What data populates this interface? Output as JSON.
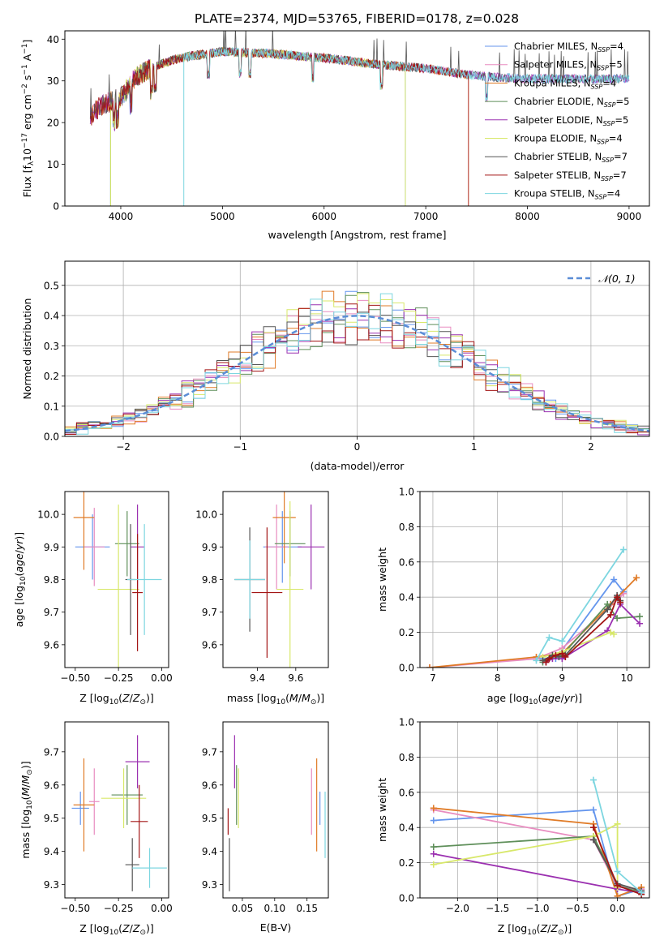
{
  "title": "PLATE=2374, MJD=53765, FIBERID=0178, z=0.028",
  "colors": [
    "#6495ED",
    "#E88CC0",
    "#E07B27",
    "#5F8F5A",
    "#9B30B0",
    "#D8E86A",
    "#555555",
    "#A31515",
    "#7DD6E0"
  ],
  "chart_data": [
    {
      "id": "spectrum",
      "type": "line",
      "xlabel": "wavelength [Angstrom, rest frame]",
      "ylabel": "Flux [fλ10⁻¹⁷ erg cm⁻² s⁻¹ A⁻¹]",
      "xlim": [
        3450,
        9200
      ],
      "ylim": [
        0,
        42
      ],
      "xticks": [
        4000,
        5000,
        6000,
        7000,
        8000,
        9000
      ],
      "yticks": [
        0,
        10,
        20,
        30,
        40
      ],
      "legend_position": "top-right",
      "series": [
        {
          "name": "Chabrier MILES, N_SSP=4",
          "base": "Chabrier MILES, N",
          "sub": "SSP",
          "n": "=4"
        },
        {
          "name": "Salpeter MILES, N_SSP=5",
          "base": "Salpeter MILES, N",
          "sub": "SSP",
          "n": "=5"
        },
        {
          "name": "Kroupa MILES, N_SSP=4",
          "base": "Kroupa MILES, N",
          "sub": "SSP",
          "n": "=4"
        },
        {
          "name": "Chabrier ELODIE, N_SSP=5",
          "base": "Chabrier ELODIE, N",
          "sub": "SSP",
          "n": "=5"
        },
        {
          "name": "Salpeter ELODIE, N_SSP=5",
          "base": "Salpeter ELODIE, N",
          "sub": "SSP",
          "n": "=5"
        },
        {
          "name": "Kroupa ELODIE, N_SSP=4",
          "base": "Kroupa ELODIE, N",
          "sub": "SSP",
          "n": "=4"
        },
        {
          "name": "Chabrier STELIB, N_SSP=7",
          "base": "Chabrier STELIB, N",
          "sub": "SSP",
          "n": "=7"
        },
        {
          "name": "Salpeter STELIB, N_SSP=7",
          "base": "Salpeter STELIB, N",
          "sub": "SSP",
          "n": "=7"
        },
        {
          "name": "Kroupa STELIB, N_SSP=4",
          "base": "Kroupa STELIB, N",
          "sub": "SSP",
          "n": "=4"
        }
      ],
      "continuum": [
        [
          3680,
          21
        ],
        [
          3800,
          24
        ],
        [
          3900,
          25
        ],
        [
          4000,
          26
        ],
        [
          4150,
          31
        ],
        [
          4300,
          33
        ],
        [
          4500,
          35
        ],
        [
          4700,
          36
        ],
        [
          5000,
          37
        ],
        [
          5500,
          36.5
        ],
        [
          6000,
          35.5
        ],
        [
          6500,
          34
        ],
        [
          7000,
          33
        ],
        [
          7400,
          31.5
        ],
        [
          7600,
          31
        ],
        [
          8000,
          30.5
        ],
        [
          8500,
          30.5
        ],
        [
          8950,
          30.5
        ]
      ],
      "model_ranges": [
        [
          3900,
          9200
        ],
        [
          3700,
          9200
        ],
        [
          3700,
          7420
        ],
        [
          3900,
          6800
        ],
        [
          3700,
          9200
        ],
        [
          3900,
          6800
        ],
        [
          3700,
          9200
        ],
        [
          3700,
          7420
        ],
        [
          4620,
          9200
        ]
      ]
    },
    {
      "id": "residuals",
      "type": "histogram",
      "xlabel": "(data-model)/error",
      "ylabel": "Normed distribution",
      "xlim": [
        -2.5,
        2.5
      ],
      "ylim": [
        0,
        0.58
      ],
      "xticks": [
        -2,
        -1,
        0,
        1,
        2
      ],
      "yticks": [
        0.0,
        0.1,
        0.2,
        0.3,
        0.4,
        0.5
      ],
      "grid": true,
      "bin_width": 0.1,
      "reference_curve": {
        "name": "N(0,1)",
        "label": "𝒩(0, 1)",
        "mean": 0,
        "sigma": 1,
        "color": "#5B8DD6"
      }
    },
    {
      "id": "age_vs_Z",
      "type": "scatter",
      "xlabel": "Z [log10(Z/Z☉)]",
      "ylabel": "age [log10(age/yr)]",
      "xlim": [
        -0.56,
        0.04
      ],
      "ylim": [
        9.53,
        10.07
      ],
      "xticks": [
        -0.5,
        -0.25,
        0.0
      ],
      "yticks": [
        9.6,
        9.7,
        9.8,
        9.9,
        10.0
      ],
      "points": [
        {
          "x": -0.4,
          "y": 9.9,
          "xerr": 0.1,
          "yerr": 0.1
        },
        {
          "x": -0.39,
          "y": 9.9,
          "xerr": 0.06,
          "yerr": 0.12
        },
        {
          "x": -0.45,
          "y": 9.99,
          "xerr": 0.06,
          "yerr": 0.16
        },
        {
          "x": -0.2,
          "y": 9.91,
          "xerr": 0.07,
          "yerr": 0.1
        },
        {
          "x": -0.14,
          "y": 9.9,
          "xerr": 0.04,
          "yerr": 0.13
        },
        {
          "x": -0.25,
          "y": 9.77,
          "xerr": 0.12,
          "yerr": 0.26
        },
        {
          "x": -0.18,
          "y": 9.8,
          "xerr": 0.03,
          "yerr": 0.17
        },
        {
          "x": -0.14,
          "y": 9.76,
          "xerr": 0.03,
          "yerr": 0.18
        },
        {
          "x": -0.1,
          "y": 9.8,
          "xerr": 0.1,
          "yerr": 0.17
        }
      ]
    },
    {
      "id": "age_vs_mass",
      "type": "scatter",
      "xlabel": "mass [log10(M/M☉)]",
      "ylabel": "",
      "xlim": [
        9.22,
        9.77
      ],
      "ylim": [
        9.53,
        10.07
      ],
      "xticks": [
        9.4,
        9.6
      ],
      "yticks": [
        9.6,
        9.7,
        9.8,
        9.9,
        10.0
      ],
      "points": [
        {
          "x": 9.53,
          "y": 9.9,
          "xerr": 0.1,
          "yerr": 0.11
        },
        {
          "x": 9.5,
          "y": 9.9,
          "xerr": 0.06,
          "yerr": 0.13
        },
        {
          "x": 9.54,
          "y": 9.99,
          "xerr": 0.06,
          "yerr": 0.14
        },
        {
          "x": 9.57,
          "y": 9.91,
          "xerr": 0.08,
          "yerr": 0.1
        },
        {
          "x": 9.68,
          "y": 9.9,
          "xerr": 0.07,
          "yerr": 0.13
        },
        {
          "x": 9.57,
          "y": 9.77,
          "xerr": 0.07,
          "yerr": 0.27
        },
        {
          "x": 9.36,
          "y": 9.8,
          "xerr": 0.08,
          "yerr": 0.16
        },
        {
          "x": 9.45,
          "y": 9.76,
          "xerr": 0.08,
          "yerr": 0.2
        },
        {
          "x": 9.36,
          "y": 9.8,
          "xerr": 0.08,
          "yerr": 0.12
        }
      ]
    },
    {
      "id": "weight_vs_age",
      "type": "line",
      "xlabel": "age [log10(age/yr)]",
      "ylabel": "mass weight",
      "xlim": [
        6.8,
        10.35
      ],
      "ylim": [
        0,
        1
      ],
      "xticks": [
        7,
        8,
        9,
        10
      ],
      "yticks": [
        0.0,
        0.2,
        0.4,
        0.6,
        0.8,
        1.0
      ],
      "grid": true,
      "series": [
        {
          "x": [
            8.6,
            8.9,
            9.8,
            9.95
          ],
          "y": [
            0.05,
            0.05,
            0.5,
            0.43
          ]
        },
        {
          "x": [
            6.95,
            8.6,
            9.0,
            9.7,
            9.95
          ],
          "y": [
            0.0,
            0.05,
            0.11,
            0.33,
            0.42
          ]
        },
        {
          "x": [
            6.95,
            8.6,
            9.0,
            9.75,
            10.15
          ],
          "y": [
            0.0,
            0.06,
            0.08,
            0.36,
            0.51
          ]
        },
        {
          "x": [
            8.7,
            8.85,
            9.0,
            9.7,
            9.85,
            10.2
          ],
          "y": [
            0.03,
            0.06,
            0.07,
            0.36,
            0.28,
            0.29
          ]
        },
        {
          "x": [
            8.75,
            8.85,
            9.0,
            9.7,
            9.9,
            10.2
          ],
          "y": [
            0.03,
            0.05,
            0.05,
            0.21,
            0.36,
            0.25
          ]
        },
        {
          "x": [
            8.7,
            9.0,
            9.75,
            9.8
          ],
          "y": [
            0.06,
            0.09,
            0.2,
            0.19
          ]
        },
        {
          "x": [
            8.7,
            8.85,
            8.95,
            9.05,
            9.7,
            9.85,
            9.9
          ],
          "y": [
            0.04,
            0.07,
            0.06,
            0.07,
            0.33,
            0.41,
            0.38
          ]
        },
        {
          "x": [
            8.75,
            8.8,
            8.9,
            9.0,
            9.05,
            9.75,
            9.85,
            9.9
          ],
          "y": [
            0.03,
            0.05,
            0.07,
            0.08,
            0.06,
            0.3,
            0.4,
            0.37
          ]
        },
        {
          "x": [
            8.6,
            8.8,
            9.0,
            9.95
          ],
          "y": [
            0.04,
            0.17,
            0.15,
            0.67
          ]
        }
      ]
    },
    {
      "id": "mass_vs_Z",
      "type": "scatter",
      "xlabel": "Z [log10(Z/Z☉)]",
      "ylabel": "mass [log10(M/M☉)]",
      "xlim": [
        -0.56,
        0.04
      ],
      "ylim": [
        9.26,
        9.79
      ],
      "xticks": [
        -0.5,
        -0.25,
        0.0
      ],
      "yticks": [
        9.3,
        9.4,
        9.5,
        9.6,
        9.7
      ],
      "points": [
        {
          "x": -0.47,
          "y": 9.53,
          "xerr": 0.05,
          "yerr": 0.05
        },
        {
          "x": -0.39,
          "y": 9.55,
          "xerr": 0.03,
          "yerr": 0.1
        },
        {
          "x": -0.45,
          "y": 9.54,
          "xerr": 0.06,
          "yerr": 0.14
        },
        {
          "x": -0.2,
          "y": 9.57,
          "xerr": 0.09,
          "yerr": 0.09
        },
        {
          "x": -0.14,
          "y": 9.67,
          "xerr": 0.07,
          "yerr": 0.08
        },
        {
          "x": -0.22,
          "y": 9.56,
          "xerr": 0.13,
          "yerr": 0.09
        },
        {
          "x": -0.17,
          "y": 9.36,
          "xerr": 0.04,
          "yerr": 0.08
        },
        {
          "x": -0.13,
          "y": 9.49,
          "xerr": 0.05,
          "yerr": 0.11
        },
        {
          "x": -0.07,
          "y": 9.35,
          "xerr": 0.1,
          "yerr": 0.06
        }
      ]
    },
    {
      "id": "mass_vs_EBV",
      "type": "scatter",
      "xlabel": "E(B-V)",
      "ylabel": "",
      "xlim": [
        0.02,
        0.183
      ],
      "ylim": [
        9.26,
        9.79
      ],
      "xticks": [
        0.05,
        0.1,
        0.15
      ],
      "yticks": [
        9.3,
        9.4,
        9.5,
        9.6,
        9.7
      ],
      "points": [
        {
          "x": 0.17,
          "y": 9.53,
          "yerr": 0.05
        },
        {
          "x": 0.157,
          "y": 9.55,
          "yerr": 0.1
        },
        {
          "x": 0.165,
          "y": 9.54,
          "yerr": 0.14
        },
        {
          "x": 0.041,
          "y": 9.57,
          "yerr": 0.09
        },
        {
          "x": 0.038,
          "y": 9.67,
          "yerr": 0.08
        },
        {
          "x": 0.044,
          "y": 9.56,
          "yerr": 0.09
        },
        {
          "x": 0.03,
          "y": 9.36,
          "yerr": 0.08
        },
        {
          "x": 0.028,
          "y": 9.49,
          "yerr": 0.04
        },
        {
          "x": 0.178,
          "y": 9.48,
          "yerr": 0.1
        }
      ]
    },
    {
      "id": "weight_vs_Z",
      "type": "line",
      "xlabel": "Z [log10(Z/Z☉)]",
      "ylabel": "mass weight",
      "xlim": [
        -2.47,
        0.4
      ],
      "ylim": [
        0,
        1
      ],
      "xticks": [
        -2.0,
        -1.5,
        -1.0,
        -0.5,
        0.0
      ],
      "yticks": [
        0.0,
        0.2,
        0.4,
        0.6,
        0.8,
        1.0
      ],
      "grid": true,
      "series": [
        {
          "x": [
            -2.3,
            -0.3,
            0.0,
            0.3
          ],
          "y": [
            0.44,
            0.5,
            0.01,
            0.05
          ]
        },
        {
          "x": [
            -2.3,
            -0.3,
            0.0,
            0.3
          ],
          "y": [
            0.5,
            0.33,
            0.06,
            0.05
          ]
        },
        {
          "x": [
            -2.3,
            -0.3,
            0.0,
            0.3
          ],
          "y": [
            0.51,
            0.42,
            0.01,
            0.06
          ]
        },
        {
          "x": [
            -2.3,
            -0.3,
            0.0,
            0.3
          ],
          "y": [
            0.29,
            0.35,
            0.07,
            0.03
          ]
        },
        {
          "x": [
            -2.3,
            0.0,
            0.3
          ],
          "y": [
            0.25,
            0.05,
            0.03
          ]
        },
        {
          "x": [
            -2.3,
            -0.3,
            0.0,
            0.0
          ],
          "y": [
            0.19,
            0.35,
            0.42,
            0.06
          ]
        },
        {
          "x": [
            -0.3,
            0.0,
            0.3
          ],
          "y": [
            0.33,
            0.08,
            0.04
          ]
        },
        {
          "x": [
            -0.3,
            0.0,
            0.3
          ],
          "y": [
            0.4,
            0.07,
            0.02
          ]
        },
        {
          "x": [
            -0.3,
            0.0,
            0.3
          ],
          "y": [
            0.67,
            0.15,
            0.03
          ]
        }
      ]
    }
  ]
}
